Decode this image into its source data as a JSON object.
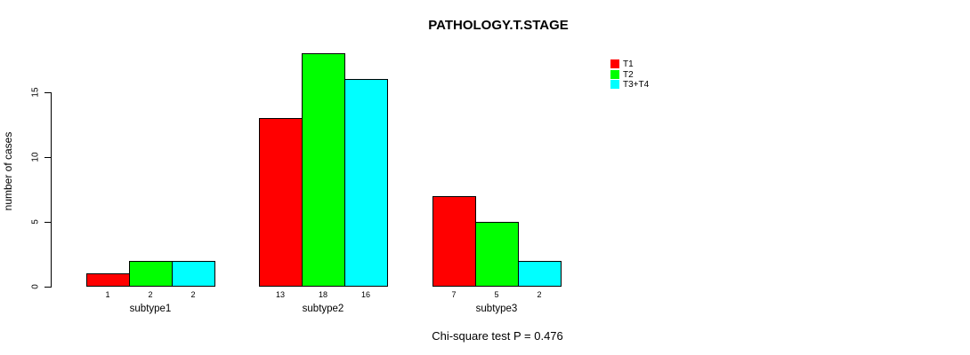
{
  "title": "PATHOLOGY.T.STAGE",
  "ylabel": "number of cases",
  "annotation": "Chi-square test P = 0.476",
  "background_color": "#ffffff",
  "axis_color": "#000000",
  "chart_data": {
    "type": "bar",
    "grouped": true,
    "title": "PATHOLOGY.T.STAGE",
    "xlabel": "",
    "ylabel": "number of cases",
    "categories": [
      "subtype1",
      "subtype2",
      "subtype3"
    ],
    "series": [
      {
        "name": "T1",
        "color": "#ff0000",
        "values": [
          1,
          13,
          7
        ]
      },
      {
        "name": "T2",
        "color": "#00ff00",
        "values": [
          2,
          18,
          5
        ]
      },
      {
        "name": "T3+T4",
        "color": "#00ffff",
        "values": [
          2,
          16,
          2
        ]
      }
    ],
    "bar_value_labels": [
      [
        1,
        2,
        2
      ],
      [
        13,
        18,
        16
      ],
      [
        7,
        5,
        2
      ]
    ],
    "ylim": [
      0,
      18
    ],
    "yticks": [
      0,
      5,
      10,
      15
    ],
    "grid": false,
    "legend_position": "right-outside",
    "annotation": "Chi-square test P = 0.476"
  },
  "legend": {
    "items": [
      {
        "label": "T1",
        "color": "#ff0000"
      },
      {
        "label": "T2",
        "color": "#00ff00"
      },
      {
        "label": "T3+T4",
        "color": "#00ffff"
      }
    ]
  }
}
